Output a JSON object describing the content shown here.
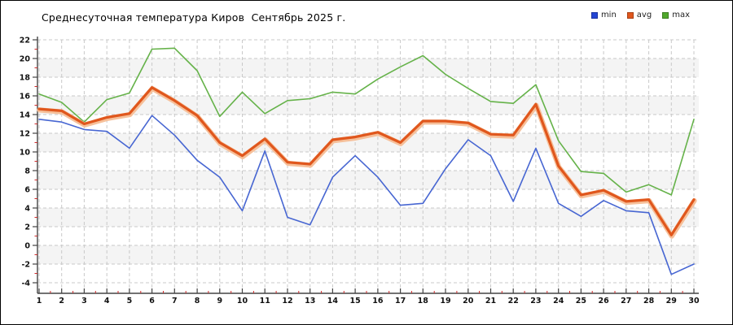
{
  "window": {
    "background": "#ffffff",
    "border_color": "#000000"
  },
  "chart": {
    "title": "Среднесуточная температура Киров  Сентябрь 2025 г.",
    "legend": [
      {
        "label": "min",
        "color": "#2445d4"
      },
      {
        "label": "avg",
        "color": "#e0571d"
      },
      {
        "label": "max",
        "color": "#50a82c"
      }
    ]
  },
  "chart_data": {
    "type": "line",
    "title": "Среднесуточная температура Киров  Сентябрь 2025 г.",
    "xlabel": "",
    "ylabel": "",
    "x": [
      1,
      2,
      3,
      4,
      5,
      6,
      7,
      8,
      9,
      10,
      11,
      12,
      13,
      14,
      15,
      16,
      17,
      18,
      19,
      20,
      21,
      22,
      23,
      24,
      25,
      26,
      27,
      28,
      29,
      30
    ],
    "series": [
      {
        "name": "min",
        "color": "#4766d2",
        "width": 1.6,
        "values": [
          13.5,
          13.2,
          12.4,
          12.2,
          10.4,
          13.9,
          11.8,
          9.1,
          7.3,
          3.7,
          10.1,
          3.0,
          2.2,
          7.3,
          9.6,
          7.3,
          4.3,
          4.5,
          8.2,
          11.3,
          9.6,
          4.7,
          10.4,
          4.5,
          3.1,
          4.8,
          3.7,
          3.5,
          -3.1,
          -2.0
        ]
      },
      {
        "name": "avg",
        "color": "#e0571d",
        "halo": "#f6c09a",
        "width": 3.2,
        "values": [
          14.6,
          14.4,
          13.0,
          13.7,
          14.1,
          16.9,
          15.5,
          13.9,
          11.0,
          9.6,
          11.4,
          8.9,
          8.7,
          11.3,
          11.6,
          12.1,
          11.0,
          13.3,
          13.3,
          13.1,
          11.9,
          11.8,
          15.1,
          8.5,
          5.4,
          5.9,
          4.7,
          4.9,
          1.1,
          4.9
        ]
      },
      {
        "name": "max",
        "color": "#65b249",
        "width": 1.6,
        "values": [
          16.2,
          15.3,
          13.2,
          15.6,
          16.3,
          21.0,
          21.1,
          18.7,
          13.8,
          16.4,
          14.1,
          15.5,
          15.7,
          16.4,
          16.2,
          17.8,
          19.1,
          20.3,
          18.3,
          16.8,
          15.4,
          15.2,
          17.2,
          11.2,
          7.9,
          7.7,
          5.7,
          6.5,
          5.4,
          13.5
        ]
      }
    ],
    "ylim": [
      -4,
      22
    ],
    "ytick_step": 2,
    "yticks": [
      22,
      20,
      18,
      16,
      14,
      12,
      10,
      8,
      6,
      4,
      2,
      0,
      -2,
      -4
    ],
    "grid": true,
    "grid_style": "dashed",
    "band_fill": "#f4f4f4",
    "grid_color": "#c9c9c9",
    "axis_color": "#444444",
    "minor_tick_color": "#cc2a2a",
    "legend_position": "top-right",
    "legend_entries": [
      "min",
      "avg",
      "max"
    ]
  }
}
